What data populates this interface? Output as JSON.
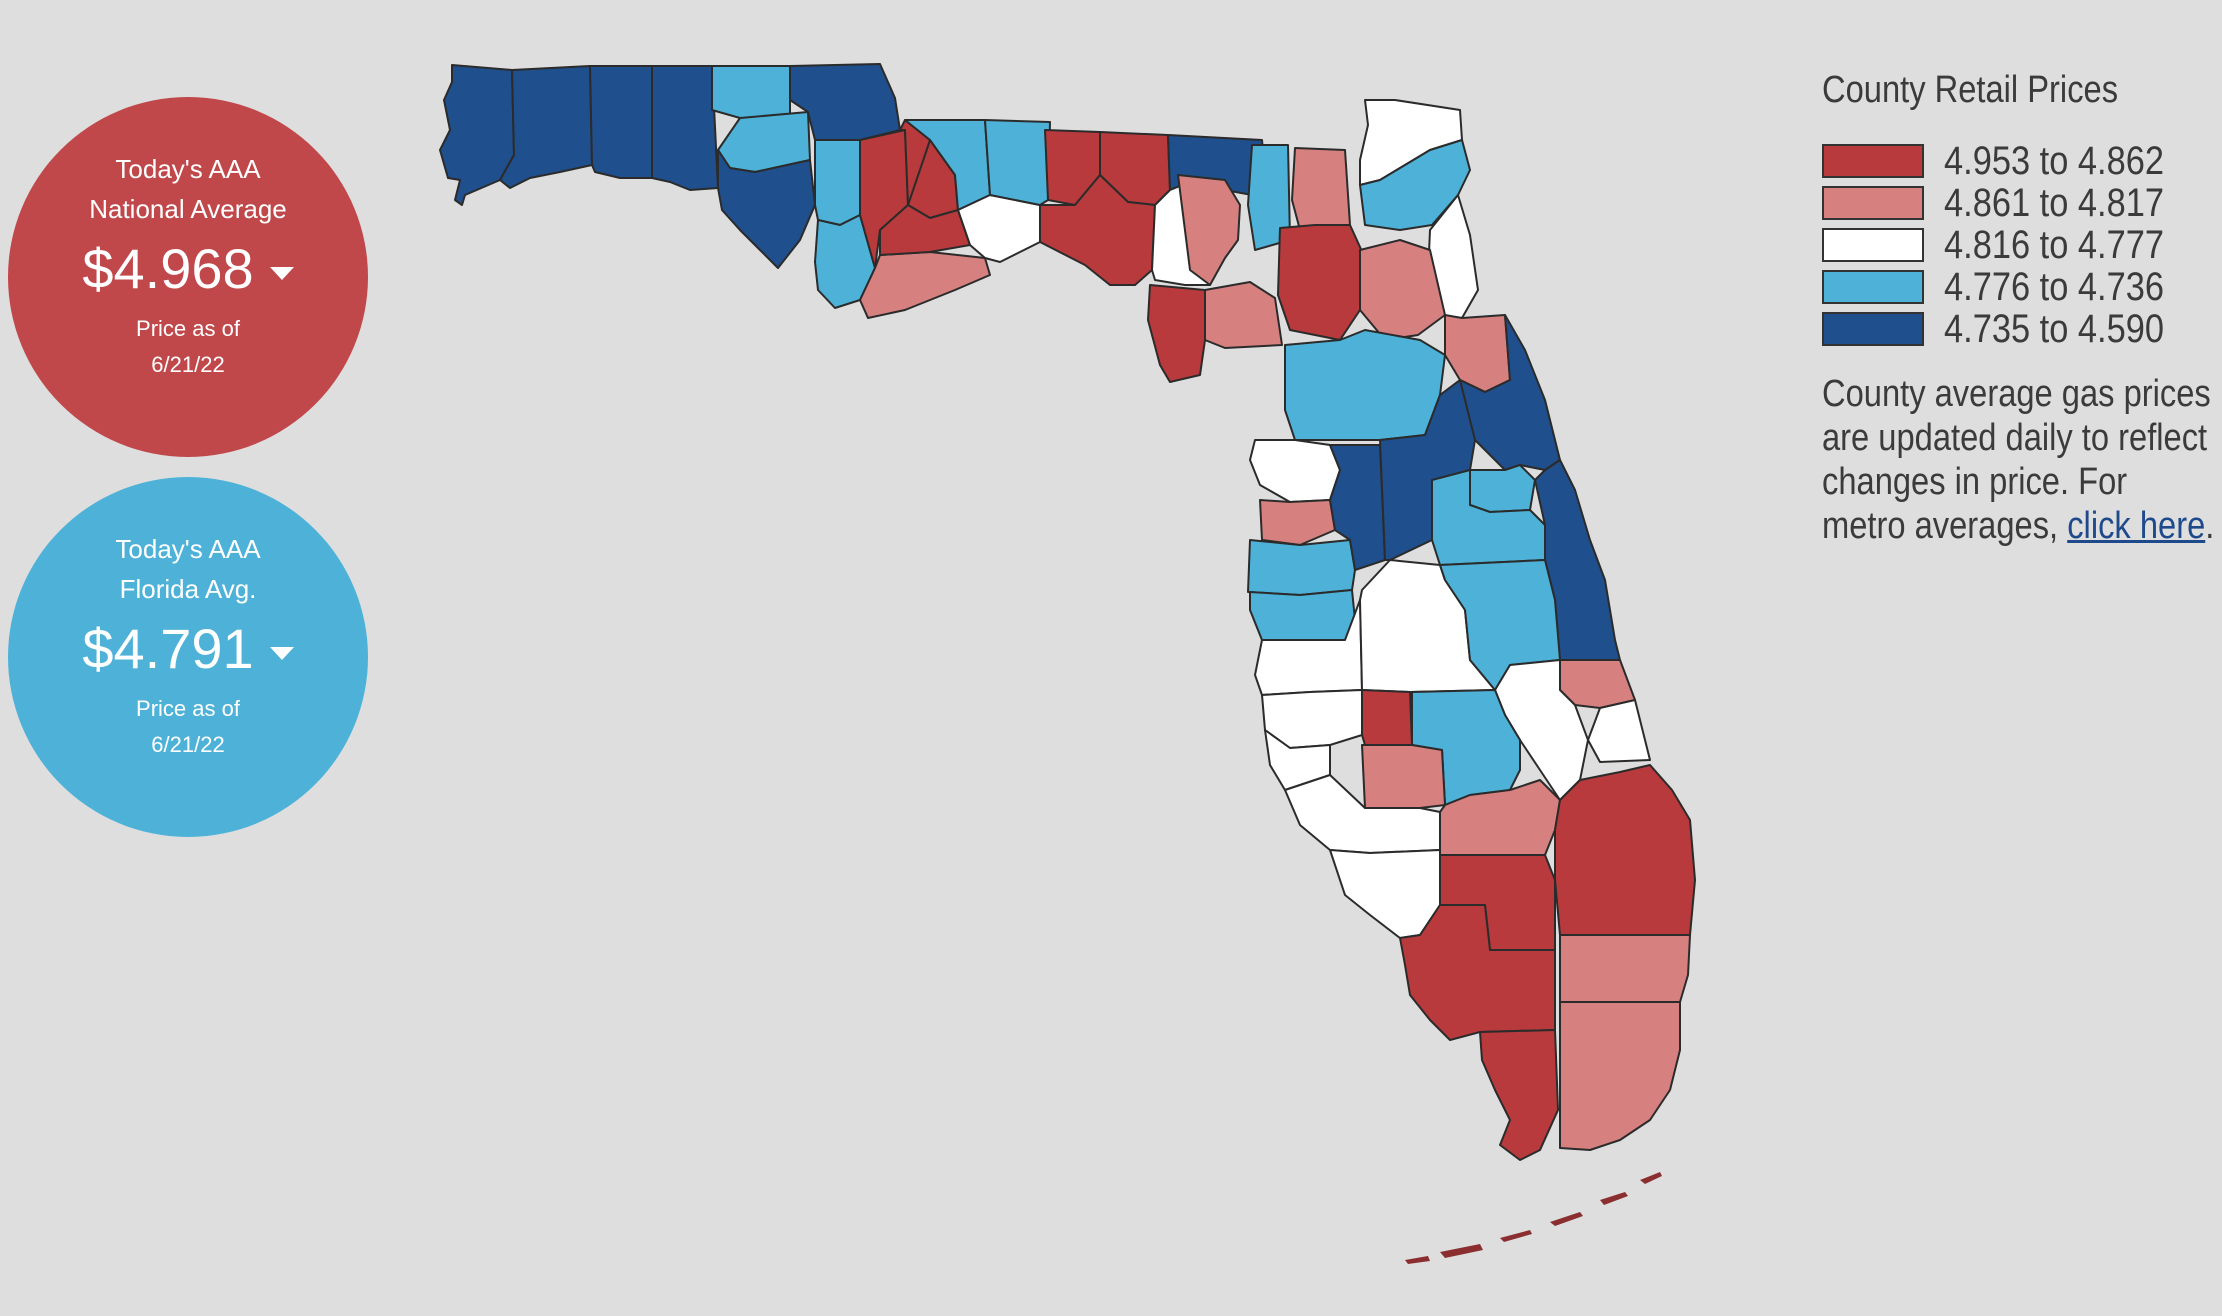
{
  "national": {
    "line1": "Today's AAA",
    "line2": "National Average",
    "price": "$4.968",
    "asof_label": "Price as of",
    "date": "6/21/22",
    "color": "#c0474a"
  },
  "florida": {
    "line1": "Today's AAA",
    "line2": "Florida Avg.",
    "price": "$4.791",
    "asof_label": "Price as of",
    "date": "6/21/22",
    "color": "#4eb2d8"
  },
  "legend": {
    "title": "County Retail Prices",
    "items": [
      {
        "range": "4.953 to 4.862",
        "color": "#b83a3c"
      },
      {
        "range": "4.861 to 4.817",
        "color": "#d68080"
      },
      {
        "range": "4.816 to 4.777",
        "color": "#ffffff"
      },
      {
        "range": "4.776 to 4.736",
        "color": "#4eb2d8"
      },
      {
        "range": "4.735 to 4.590",
        "color": "#1f4f8c"
      }
    ],
    "note": "County average gas prices are updated daily to reflect changes in price. For metro averages,",
    "link_text": "click here",
    "note_end": "."
  }
}
